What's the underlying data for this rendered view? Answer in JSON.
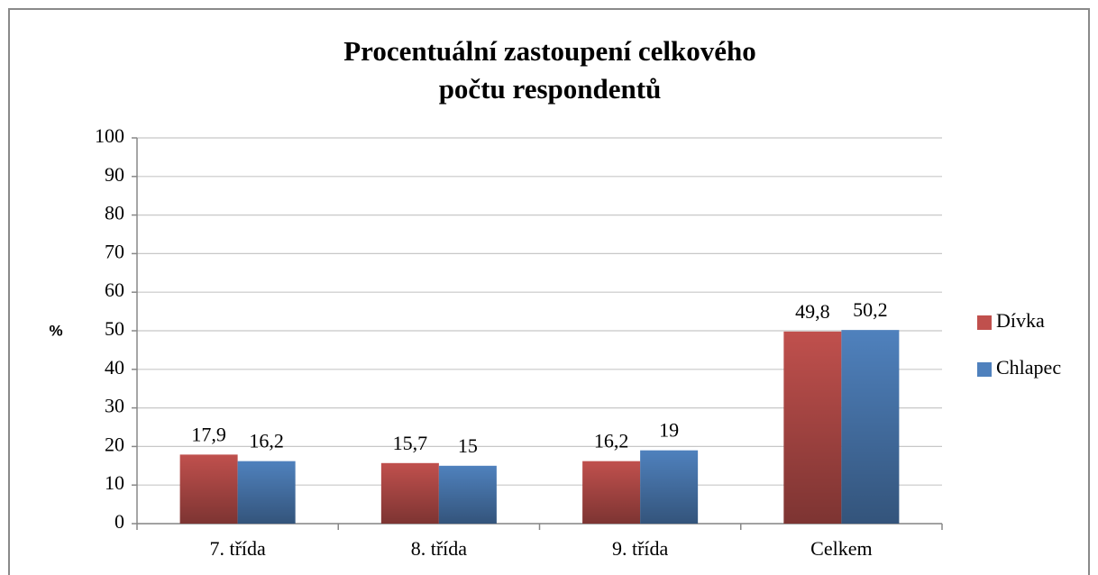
{
  "chart_data": {
    "type": "bar",
    "title": [
      "Procentuální zastoupení celkového",
      "počtu respondentů"
    ],
    "y_label": "%",
    "categories": [
      "7. třída",
      "8. třída",
      "9. třída",
      "Celkem"
    ],
    "series": [
      {
        "name": "Dívka",
        "color": "#c0504d",
        "values": [
          17.9,
          15.7,
          16.2,
          49.8
        ],
        "value_labels": [
          "17,9",
          "15,7",
          "16,2",
          "49,8"
        ]
      },
      {
        "name": "Chlapec",
        "color": "#4f81bd",
        "values": [
          16.2,
          15,
          19,
          50.2
        ],
        "value_labels": [
          "16,2",
          "15",
          "19",
          "50,2"
        ]
      }
    ],
    "ylim": [
      0,
      100
    ],
    "yticks": [
      0,
      10,
      20,
      30,
      40,
      50,
      60,
      70,
      80,
      90,
      100
    ],
    "grid": true,
    "legend": "right"
  }
}
